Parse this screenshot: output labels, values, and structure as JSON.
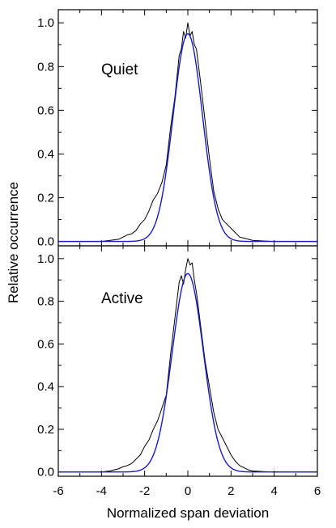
{
  "chart_data": {
    "type": "line",
    "xlabel": "Normalized span deviation",
    "ylabel": "Relative occurrence",
    "xlim": [
      -6,
      6
    ],
    "x_ticks": [
      "-6",
      "-4",
      "-2",
      "0",
      "2",
      "4",
      "6"
    ],
    "panels": [
      {
        "label": "Quiet",
        "ylim": [
          -0.02,
          1.06
        ],
        "y_ticks": [
          "0.0",
          "0.2",
          "0.4",
          "0.6",
          "0.8",
          "1.0"
        ],
        "y_tick_values": [
          0.0,
          0.2,
          0.4,
          0.6,
          0.8,
          1.0
        ],
        "series": [
          {
            "color": "#000000",
            "x": [
              -6.0,
              -5.0,
              -4.0,
              -3.6,
              -3.2,
              -3.0,
              -2.8,
              -2.6,
              -2.4,
              -2.2,
              -2.0,
              -1.8,
              -1.6,
              -1.4,
              -1.2,
              -1.0,
              -0.8,
              -0.6,
              -0.4,
              -0.3,
              -0.2,
              -0.1,
              0.0,
              0.1,
              0.2,
              0.3,
              0.4,
              0.6,
              0.8,
              1.0,
              1.2,
              1.4,
              1.6,
              1.8,
              2.0,
              2.2,
              2.4,
              2.6,
              2.8,
              3.0,
              3.5,
              4.0,
              5.0,
              6.0
            ],
            "y": [
              0.0,
              0.0,
              0.0,
              0.005,
              0.01,
              0.02,
              0.03,
              0.035,
              0.05,
              0.08,
              0.1,
              0.14,
              0.19,
              0.22,
              0.27,
              0.35,
              0.52,
              0.66,
              0.85,
              0.88,
              0.96,
              0.93,
              1.0,
              0.94,
              0.96,
              0.9,
              0.88,
              0.72,
              0.55,
              0.38,
              0.23,
              0.15,
              0.1,
              0.08,
              0.06,
              0.04,
              0.02,
              0.015,
              0.01,
              0.005,
              0.002,
              0.0,
              0.0,
              0.0
            ]
          },
          {
            "color": "#1a1acc",
            "type": "gaussian",
            "amplitude": 0.95,
            "sigma": 0.68
          }
        ]
      },
      {
        "label": "Active",
        "ylim": [
          -0.02,
          1.06
        ],
        "y_ticks": [
          "0.0",
          "0.2",
          "0.4",
          "0.6",
          "0.8",
          "1.0"
        ],
        "y_tick_values": [
          0.0,
          0.2,
          0.4,
          0.6,
          0.8,
          1.0
        ],
        "series": [
          {
            "color": "#000000",
            "x": [
              -6.0,
              -5.0,
              -4.0,
              -3.6,
              -3.2,
              -3.0,
              -2.8,
              -2.6,
              -2.4,
              -2.2,
              -2.0,
              -1.8,
              -1.6,
              -1.4,
              -1.2,
              -1.0,
              -0.8,
              -0.6,
              -0.4,
              -0.3,
              -0.2,
              -0.1,
              0.0,
              0.1,
              0.2,
              0.3,
              0.4,
              0.6,
              0.8,
              1.0,
              1.2,
              1.4,
              1.6,
              1.8,
              2.0,
              2.2,
              2.4,
              2.6,
              2.8,
              3.0,
              3.5,
              4.0,
              5.0,
              6.0
            ],
            "y": [
              0.0,
              0.0,
              0.0,
              0.005,
              0.015,
              0.025,
              0.03,
              0.04,
              0.06,
              0.08,
              0.12,
              0.15,
              0.2,
              0.24,
              0.3,
              0.36,
              0.55,
              0.72,
              0.89,
              0.92,
              0.88,
              0.95,
              1.0,
              0.97,
              0.98,
              0.9,
              0.84,
              0.68,
              0.52,
              0.4,
              0.28,
              0.2,
              0.16,
              0.12,
              0.08,
              0.05,
              0.03,
              0.02,
              0.01,
              0.005,
              0.002,
              0.0,
              0.0,
              0.0
            ]
          },
          {
            "color": "#1a1acc",
            "type": "gaussian",
            "amplitude": 0.93,
            "sigma": 0.72
          }
        ]
      }
    ]
  }
}
